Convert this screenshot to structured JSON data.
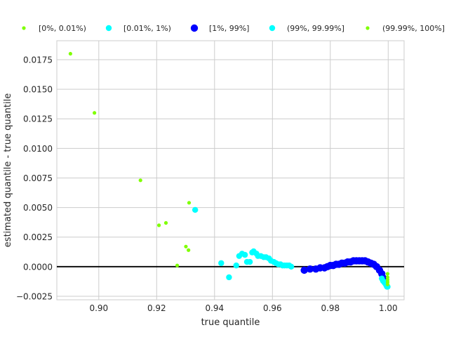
{
  "chart_data": {
    "type": "scatter",
    "title": "",
    "xlabel": "true quantile",
    "ylabel": "estimated quantile - true quantile",
    "xlim": [
      0.8855,
      1.0055
    ],
    "ylim": [
      -0.0028,
      0.0191
    ],
    "xticks": [
      0.9,
      0.92,
      0.94,
      0.96,
      0.98,
      1.0
    ],
    "xtick_labels": [
      "0.90",
      "0.92",
      "0.94",
      "0.96",
      "0.98",
      "1.00"
    ],
    "yticks": [
      -0.0025,
      0.0,
      0.0025,
      0.005,
      0.0075,
      0.01,
      0.0125,
      0.015,
      0.0175
    ],
    "ytick_labels": [
      "−0.0025",
      "0.0000",
      "0.0025",
      "0.0050",
      "0.0075",
      "0.0100",
      "0.0125",
      "0.0150",
      "0.0175"
    ],
    "grid": true,
    "legend_position": "top",
    "reference_line_y": 0,
    "series": [
      {
        "name": "[0%, 0.01%)",
        "color": "#7fff00",
        "marker_size": "small",
        "points": [
          [
            0.8902,
            0.018
          ],
          [
            0.8985,
            0.013
          ],
          [
            0.9144,
            0.0073
          ],
          [
            0.9208,
            0.0035
          ],
          [
            0.9232,
            0.0037
          ],
          [
            0.9312,
            0.0054
          ],
          [
            0.9301,
            0.0017
          ],
          [
            0.931,
            0.0014
          ],
          [
            0.9271,
            0.0001
          ]
        ]
      },
      {
        "name": "[0.01%, 1%)",
        "color": "#00ffff",
        "marker_size": "medium",
        "points": [
          [
            0.9333,
            0.0048
          ],
          [
            0.9423,
            0.0003
          ],
          [
            0.945,
            -0.0009
          ],
          [
            0.9475,
            0.0001
          ],
          [
            0.9485,
            0.0009
          ],
          [
            0.9495,
            0.0011
          ],
          [
            0.9505,
            0.001
          ],
          [
            0.9512,
            0.0004
          ],
          [
            0.9522,
            0.0004
          ],
          [
            0.953,
            0.0012
          ],
          [
            0.9535,
            0.0013
          ],
          [
            0.9545,
            0.0011
          ],
          [
            0.955,
            0.0009
          ],
          [
            0.956,
            0.0009
          ],
          [
            0.957,
            0.0008
          ],
          [
            0.9578,
            0.0008
          ],
          [
            0.9588,
            0.0007
          ],
          [
            0.9595,
            0.0005
          ],
          [
            0.9605,
            0.0004
          ],
          [
            0.9612,
            0.0003
          ],
          [
            0.962,
            0.0002
          ],
          [
            0.9628,
            0.0002
          ],
          [
            0.9635,
            0.0001
          ],
          [
            0.9642,
            0.0001
          ],
          [
            0.965,
            0.0001
          ],
          [
            0.9658,
            0.0001
          ],
          [
            0.9665,
            0.0
          ]
        ]
      },
      {
        "name": "[1%, 99%]",
        "color": "#0000ff",
        "marker_size": "large",
        "points": [
          [
            0.971,
            -0.0003
          ],
          [
            0.973,
            -0.0002
          ],
          [
            0.975,
            -0.0002
          ],
          [
            0.9765,
            -0.0001
          ],
          [
            0.978,
            -0.0001
          ],
          [
            0.979,
            0.0
          ],
          [
            0.98,
            0.0001
          ],
          [
            0.981,
            0.0001
          ],
          [
            0.982,
            0.0002
          ],
          [
            0.983,
            0.0002
          ],
          [
            0.984,
            0.0003
          ],
          [
            0.985,
            0.0003
          ],
          [
            0.986,
            0.0004
          ],
          [
            0.987,
            0.0004
          ],
          [
            0.988,
            0.0005
          ],
          [
            0.989,
            0.0005
          ],
          [
            0.99,
            0.0005
          ],
          [
            0.991,
            0.0005
          ],
          [
            0.992,
            0.0005
          ],
          [
            0.993,
            0.0004
          ],
          [
            0.994,
            0.0003
          ],
          [
            0.995,
            0.0002
          ],
          [
            0.996,
            0.0
          ],
          [
            0.997,
            -0.0003
          ],
          [
            0.9978,
            -0.0006
          ],
          [
            0.9985,
            -0.001
          ]
        ]
      },
      {
        "name": "(99%, 99.99%]",
        "color": "#00ffff",
        "marker_size": "medium",
        "points": [
          [
            0.9978,
            -0.001
          ],
          [
            0.9982,
            -0.0012
          ],
          [
            0.9986,
            -0.0013
          ],
          [
            0.9989,
            -0.0014
          ],
          [
            0.9992,
            -0.0015
          ],
          [
            0.9994,
            -0.0016
          ],
          [
            0.9996,
            -0.0017
          ],
          [
            0.9998,
            -0.0017
          ]
        ]
      },
      {
        "name": "(99.99%, 100%]",
        "color": "#7fff00",
        "marker_size": "small",
        "points": [
          [
            0.9998,
            -0.0006
          ],
          [
            0.9998,
            -0.0009
          ],
          [
            0.9998,
            -0.0011
          ],
          [
            0.9998,
            -0.0013
          ],
          [
            0.9998,
            -0.0015
          ]
        ]
      }
    ]
  }
}
